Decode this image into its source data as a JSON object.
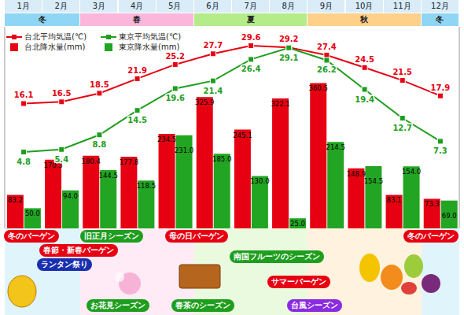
{
  "chart_data": {
    "type": "bar",
    "categories": [
      "1月",
      "2月",
      "3月",
      "4月",
      "5月",
      "6月",
      "7月",
      "8月",
      "9月",
      "10月",
      "11月",
      "12月"
    ],
    "ylim": [
      0,
      500
    ],
    "y2lim": [
      -13,
      34
    ],
    "tick_labels": false,
    "data_labels": true,
    "legend": "top-left",
    "series": [
      {
        "name": "台北平均気温(℃)",
        "type": "line",
        "axis": "y2",
        "color": "#e60012",
        "marker": "square",
        "values": [
          16.1,
          16.5,
          18.5,
          21.9,
          25.2,
          27.7,
          29.6,
          29.2,
          27.4,
          24.5,
          21.5,
          17.9
        ]
      },
      {
        "name": "東京平均気温(℃)",
        "type": "line",
        "axis": "y2",
        "color": "#1e9e1e",
        "marker": "square",
        "values": [
          4.8,
          5.4,
          8.8,
          14.5,
          19.6,
          21.4,
          26.4,
          29.1,
          26.2,
          19.4,
          12.7,
          7.3
        ]
      },
      {
        "name": "台北降水量(mm)",
        "type": "bar",
        "color": "#e60012",
        "values": [
          83.2,
          170.3,
          180.4,
          177.8,
          234.5,
          325.9,
          245.1,
          322.1,
          360.5,
          148.9,
          83.1,
          73.3
        ]
      },
      {
        "name": "東京降水量(mm)",
        "type": "bar",
        "color": "#22a522",
        "values": [
          50,
          94,
          144.5,
          118.5,
          231,
          185,
          130,
          25,
          214.5,
          154.5,
          154,
          69
        ],
        "value_labels": [
          "50.0",
          "94.0",
          "144.5",
          "118.5",
          "231.0",
          "185.0",
          "130.0",
          "25.0",
          "214.5",
          "154.5",
          "154.0",
          "69.0"
        ]
      }
    ],
    "seasons": [
      {
        "label": "冬",
        "span": [
          "1月",
          "2月"
        ],
        "color": "#8fd6f5"
      },
      {
        "label": "春",
        "span": [
          "3月",
          "4月",
          "5月"
        ],
        "color": "#fbb6dc"
      },
      {
        "label": "夏",
        "span": [
          "6月",
          "7月",
          "8月"
        ],
        "color": "#b4ec8a"
      },
      {
        "label": "秋",
        "span": [
          "9月",
          "10月",
          "11月"
        ],
        "color": "#ffd08a"
      },
      {
        "label": "冬",
        "span": [
          "12月"
        ],
        "color": "#8fd6f5"
      }
    ],
    "annotations": [
      {
        "label": "冬のバーゲン",
        "months": [
          "1月"
        ],
        "color": "#e60012"
      },
      {
        "label": "旧正月シーズン",
        "months": [
          "2月",
          "3月"
        ],
        "color": "#1e9e1e"
      },
      {
        "label": "春節・新春バーゲン",
        "months": [
          "2月"
        ],
        "color": "#e60012"
      },
      {
        "label": "ランタン祭り",
        "months": [
          "2月"
        ],
        "color": "#1a2fb0"
      },
      {
        "label": "お花見シーズン",
        "months": [
          "3月"
        ],
        "color": "#1e9e1e"
      },
      {
        "label": "母の日バーゲン",
        "months": [
          "5月"
        ],
        "color": "#e60012"
      },
      {
        "label": "南国フルーツのシーズン",
        "months": [
          "7月"
        ],
        "color": "#1e9e1e"
      },
      {
        "label": "サマーバーゲン",
        "months": [
          "7月",
          "8月"
        ],
        "color": "#e60012"
      },
      {
        "label": "春茶のシーズン",
        "months": [
          "5月"
        ],
        "color": "#1e9e1e"
      },
      {
        "label": "台風シーズン",
        "months": [
          "8月"
        ],
        "color": "#8a2be2"
      },
      {
        "label": "冬のバーゲン",
        "months": [
          "12月"
        ],
        "color": "#e60012"
      }
    ]
  }
}
